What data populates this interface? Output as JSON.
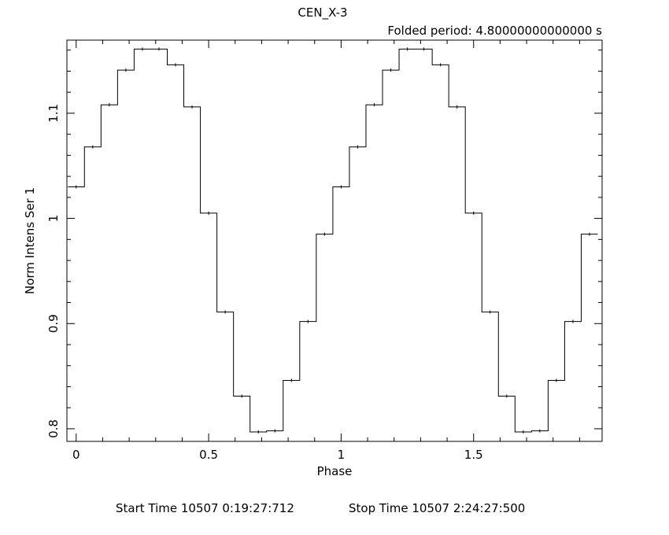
{
  "chart_data": {
    "type": "line",
    "drawstyle": "step-mid",
    "title": "CEN_X-3",
    "subtitle": "Folded period: 4.80000000000000  s",
    "xlabel": "Phase",
    "ylabel": "Norm Intens Ser  1",
    "xlim": [
      -0.035,
      1.985
    ],
    "ylim": [
      0.788,
      1.1695
    ],
    "xticks": [
      0,
      0.5,
      1,
      1.5
    ],
    "xtick_labels": [
      "0",
      "0.5",
      "1",
      "1.5"
    ],
    "yticks": [
      0.8,
      0.9,
      1.0,
      1.1
    ],
    "ytick_labels": [
      "0.8",
      "0.9",
      "1",
      "1.1"
    ],
    "grid": false,
    "series": [
      {
        "x": [
          0.0,
          0.0625,
          0.125,
          0.1875,
          0.25,
          0.3125,
          0.375,
          0.4375,
          0.5,
          0.5625,
          0.625,
          0.6875,
          0.75,
          0.8125,
          0.875,
          0.9375,
          1.0,
          1.0625,
          1.125,
          1.1875,
          1.25,
          1.3125,
          1.375,
          1.4375,
          1.5,
          1.5625,
          1.625,
          1.6875,
          1.75,
          1.8125,
          1.875,
          1.9375
        ],
        "y": [
          1.03,
          1.068,
          1.108,
          1.141,
          1.161,
          1.161,
          1.146,
          1.106,
          1.005,
          0.911,
          0.831,
          0.797,
          0.798,
          0.846,
          0.902,
          0.985,
          1.03,
          1.068,
          1.108,
          1.141,
          1.161,
          1.161,
          1.146,
          1.106,
          1.005,
          0.911,
          0.831,
          0.797,
          0.798,
          0.846,
          0.902,
          0.985
        ]
      }
    ]
  },
  "footer": {
    "start": "Start Time 10507  0:19:27:712",
    "stop": "Stop Time 10507  2:24:27:500"
  }
}
